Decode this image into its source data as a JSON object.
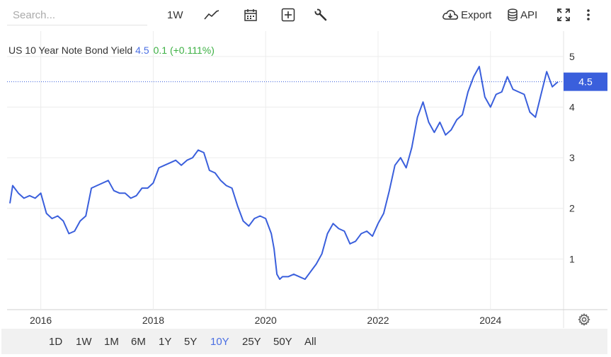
{
  "toolbar": {
    "search_placeholder": "Search...",
    "interval_label": "1W",
    "export_label": "Export",
    "api_label": "API",
    "icons": [
      "line-chart-icon",
      "calendar-icon",
      "add-icon",
      "wrench-icon",
      "cloud-download-icon",
      "database-icon",
      "fullscreen-icon",
      "more-vertical-icon"
    ]
  },
  "legend": {
    "name": "US 10 Year Note Bond Yield",
    "value": "4.5",
    "change": "0.1 (+0.111%)"
  },
  "ranges": [
    "1D",
    "1W",
    "1M",
    "6M",
    "1Y",
    "5Y",
    "10Y",
    "25Y",
    "50Y",
    "All"
  ],
  "active_range": "10Y",
  "colors": {
    "line": "#3a5fdc",
    "change_up": "#3cb043",
    "last_badge": "#3a5fdc"
  },
  "chart_data": {
    "type": "line",
    "ylim": [
      0,
      5.5
    ],
    "xlim": [
      2015.4,
      2025.3
    ],
    "y_ticks": [
      "1",
      "2",
      "3",
      "4",
      "5"
    ],
    "x_ticks": [
      "2016",
      "2018",
      "2020",
      "2022",
      "2024"
    ],
    "last_value_label": "4.5",
    "grid": true,
    "series": [
      {
        "x": [
          2015.45,
          2015.5,
          2015.6,
          2015.7,
          2015.8,
          2015.9,
          2016.0,
          2016.1,
          2016.2,
          2016.3,
          2016.4,
          2016.5,
          2016.6,
          2016.7,
          2016.8,
          2016.9,
          2017.0,
          2017.1,
          2017.2,
          2017.3,
          2017.4,
          2017.5,
          2017.6,
          2017.7,
          2017.8,
          2017.9,
          2018.0,
          2018.1,
          2018.2,
          2018.3,
          2018.4,
          2018.5,
          2018.6,
          2018.7,
          2018.8,
          2018.9,
          2019.0,
          2019.1,
          2019.2,
          2019.3,
          2019.4,
          2019.5,
          2019.6,
          2019.7,
          2019.8,
          2019.9,
          2020.0,
          2020.1,
          2020.15,
          2020.2,
          2020.25,
          2020.3,
          2020.4,
          2020.5,
          2020.6,
          2020.7,
          2020.8,
          2020.9,
          2021.0,
          2021.1,
          2021.2,
          2021.3,
          2021.4,
          2021.5,
          2021.6,
          2021.7,
          2021.8,
          2021.9,
          2022.0,
          2022.1,
          2022.2,
          2022.3,
          2022.4,
          2022.5,
          2022.6,
          2022.7,
          2022.8,
          2022.9,
          2023.0,
          2023.1,
          2023.2,
          2023.3,
          2023.4,
          2023.5,
          2023.6,
          2023.7,
          2023.8,
          2023.9,
          2024.0,
          2024.1,
          2024.2,
          2024.3,
          2024.4,
          2024.5,
          2024.6,
          2024.7,
          2024.8,
          2024.9,
          2025.0,
          2025.1,
          2025.2
        ],
        "y": [
          2.1,
          2.45,
          2.3,
          2.2,
          2.25,
          2.2,
          2.3,
          1.9,
          1.8,
          1.85,
          1.75,
          1.5,
          1.55,
          1.75,
          1.85,
          2.4,
          2.45,
          2.5,
          2.55,
          2.35,
          2.3,
          2.3,
          2.2,
          2.25,
          2.4,
          2.4,
          2.5,
          2.8,
          2.85,
          2.9,
          2.95,
          2.85,
          2.95,
          3.0,
          3.15,
          3.1,
          2.75,
          2.7,
          2.55,
          2.45,
          2.4,
          2.05,
          1.75,
          1.65,
          1.8,
          1.85,
          1.8,
          1.5,
          1.2,
          0.7,
          0.6,
          0.65,
          0.65,
          0.7,
          0.65,
          0.6,
          0.75,
          0.9,
          1.1,
          1.5,
          1.7,
          1.6,
          1.55,
          1.3,
          1.35,
          1.5,
          1.55,
          1.45,
          1.7,
          1.9,
          2.35,
          2.85,
          3.0,
          2.8,
          3.2,
          3.8,
          4.1,
          3.7,
          3.5,
          3.7,
          3.45,
          3.55,
          3.75,
          3.85,
          4.3,
          4.6,
          4.8,
          4.2,
          4.0,
          4.25,
          4.3,
          4.6,
          4.35,
          4.3,
          4.25,
          3.9,
          3.8,
          4.25,
          4.7,
          4.4,
          4.5
        ]
      }
    ]
  }
}
